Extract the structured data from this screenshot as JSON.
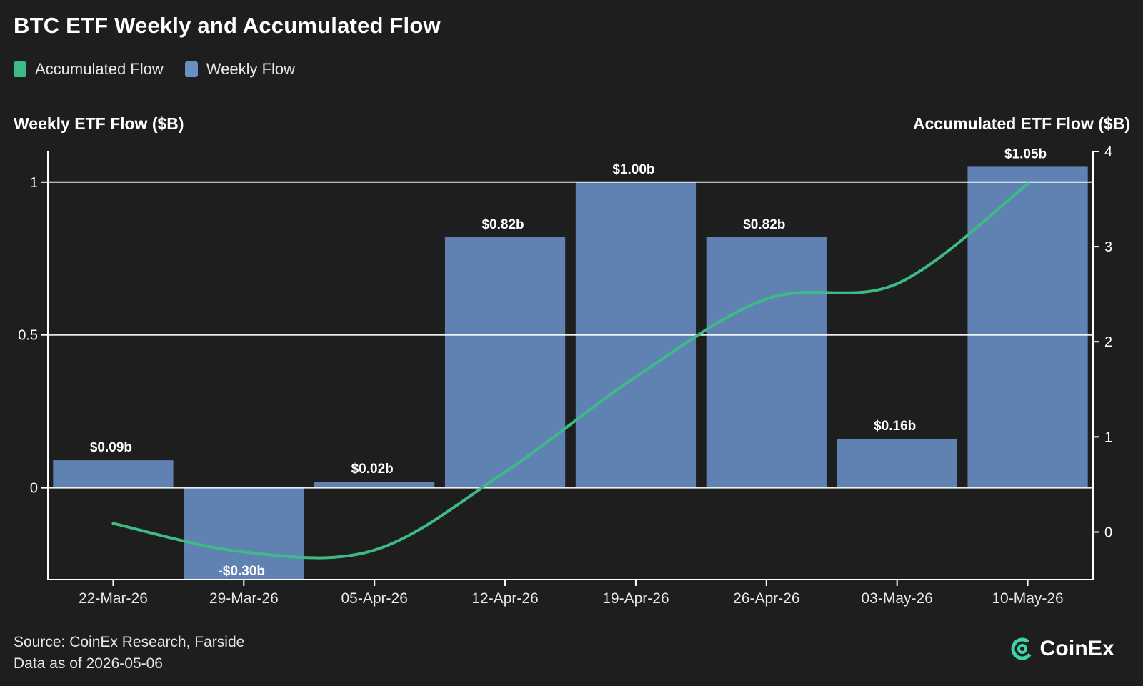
{
  "title": "BTC ETF Weekly and Accumulated Flow",
  "legend": [
    {
      "label": "Accumulated Flow",
      "color": "#3dbb85"
    },
    {
      "label": "Weekly Flow",
      "color": "#6a8fc5"
    }
  ],
  "left_axis_title": "Weekly ETF Flow ($B)",
  "right_axis_title": "Accumulated ETF Flow ($B)",
  "footer": {
    "source": "Source: CoinEx Research, Farside",
    "as_of": "Data as of 2026-05-06"
  },
  "brand": "CoinEx",
  "colors": {
    "background": "#1e1e1e",
    "bar": "#5f82b3",
    "line": "#3dbb85",
    "grid": "#ffffff",
    "text": "#ffffff"
  },
  "chart_data": {
    "type": "bar",
    "categories": [
      "22-Mar-26",
      "29-Mar-26",
      "05-Apr-26",
      "12-Apr-26",
      "19-Apr-26",
      "26-Apr-26",
      "03-May-26",
      "10-May-26"
    ],
    "series": [
      {
        "name": "Weekly Flow",
        "type": "bar",
        "axis": "left",
        "values": [
          0.09,
          -0.3,
          0.02,
          0.82,
          1.0,
          0.82,
          0.16,
          1.05
        ],
        "labels": [
          "$0.09b",
          "-$0.30b",
          "$0.02b",
          "$0.82b",
          "$1.00b",
          "$0.82b",
          "$0.16b",
          "$1.05b"
        ]
      },
      {
        "name": "Accumulated Flow",
        "type": "line",
        "axis": "right",
        "values": [
          0.09,
          -0.21,
          -0.19,
          0.63,
          1.63,
          2.45,
          2.61,
          3.66
        ]
      }
    ],
    "y_left": {
      "label": "Weekly ETF Flow ($B)",
      "lim": [
        -0.3,
        1.1
      ],
      "ticks": [
        0,
        0.5,
        1
      ],
      "tick_labels": [
        "0",
        "0.5",
        "1"
      ]
    },
    "y_right": {
      "label": "Accumulated ETF Flow ($B)",
      "lim": [
        -0.5,
        4
      ],
      "ticks": [
        0,
        1,
        2,
        3,
        4
      ],
      "tick_labels": [
        "0",
        "1",
        "2",
        "3",
        "4"
      ]
    },
    "grid": "horizontal at left-axis major ticks",
    "legend_position": "top-left"
  }
}
